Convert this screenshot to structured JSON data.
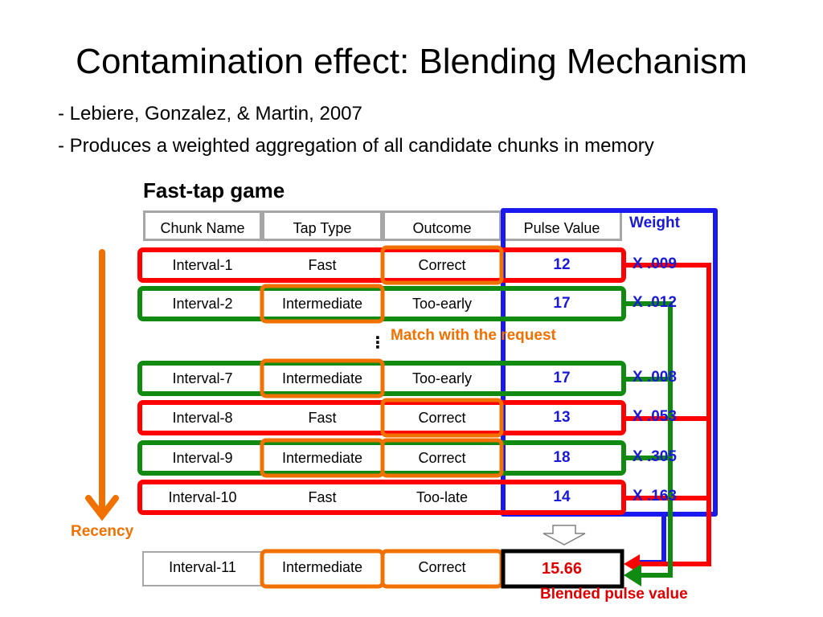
{
  "title": "Contamination effect: Blending Mechanism",
  "bullets": [
    "- Lebiere, Gonzalez, & Martin, 2007",
    "- Produces a weighted aggregation of all candidate chunks in memory"
  ],
  "game_label": "Fast-tap game",
  "table": {
    "headers": [
      "Chunk Name",
      "Tap Type",
      "Outcome",
      "Pulse Value"
    ],
    "weight_header": "Weight",
    "rows": [
      {
        "name": "Interval-1",
        "tap": "Fast",
        "outcome": "Correct",
        "pulse": "12",
        "weight": "X .009"
      },
      {
        "name": "Interval-2",
        "tap": "Intermediate",
        "outcome": "Too-early",
        "pulse": "17",
        "weight": "X .012"
      },
      {
        "name": "Interval-7",
        "tap": "Intermediate",
        "outcome": "Too-early",
        "pulse": "17",
        "weight": "X .008"
      },
      {
        "name": "Interval-8",
        "tap": "Fast",
        "outcome": "Correct",
        "pulse": "13",
        "weight": "X .053"
      },
      {
        "name": "Interval-9",
        "tap": "Intermediate",
        "outcome": "Correct",
        "pulse": "18",
        "weight": "X .305"
      },
      {
        "name": "Interval-10",
        "tap": "Fast",
        "outcome": "Too-late",
        "pulse": "14",
        "weight": "X .163"
      }
    ],
    "ellipsis": "⋮",
    "result_row": {
      "name": "Interval-11",
      "tap": "Intermediate",
      "outcome": "Correct",
      "pulse": "15.66"
    }
  },
  "annotations": {
    "match": "Match with the request",
    "recency": "Recency",
    "blended": "Blended pulse value"
  },
  "colors": {
    "red": "#ff0000",
    "green": "#108a10",
    "orange": "#f07000",
    "blue": "#1a1aee",
    "gray": "#a6a6a6"
  }
}
